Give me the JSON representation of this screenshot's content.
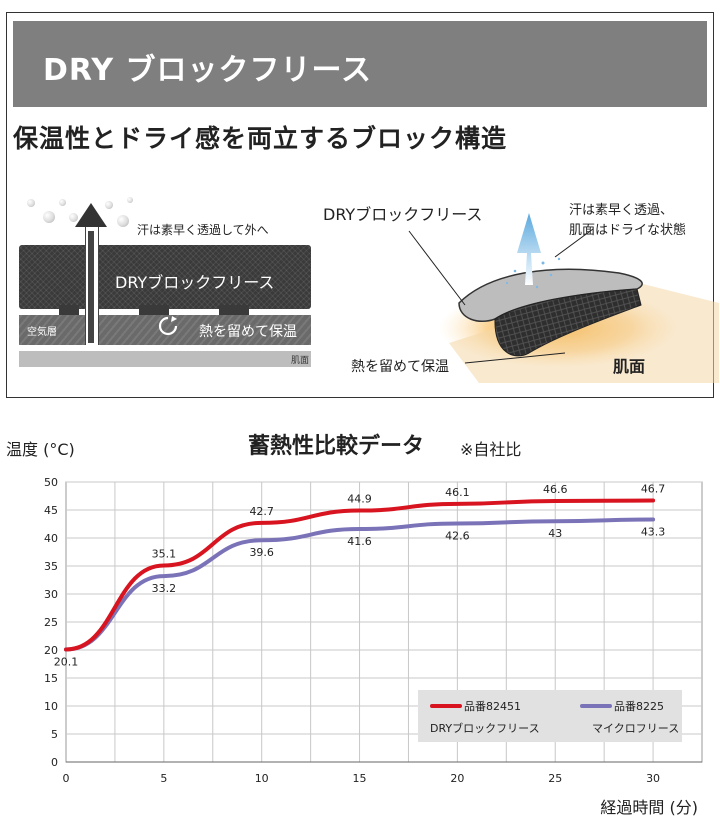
{
  "header": {
    "banner_title": "DRY ブロックフリース",
    "subtitle": "保温性とドライ感を両立するブロック構造"
  },
  "schematic": {
    "sweat_text": "汗は素早く透過して外へ",
    "fleece_text": "DRYブロックフリース",
    "air_layer_text": "空気層",
    "heat_text": "熱を留めて保温",
    "skin_text": "肌面"
  },
  "illustration": {
    "fleece_text": "DRYブロックフリース",
    "sweat_line1": "汗は素早く透過、",
    "sweat_line2": "肌面はドライな状態",
    "heat_text": "熱を留めて保温",
    "skin_text": "肌面"
  },
  "chart_data": {
    "type": "line",
    "title": "蓄熱性比較データ",
    "note": "※自社比",
    "ylabel": "温度 (°C)",
    "xlabel": "経過時間 (分)",
    "x": [
      0,
      5,
      10,
      15,
      20,
      25,
      30
    ],
    "ylim": [
      0,
      50
    ],
    "y_ticks": [
      0,
      5,
      10,
      15,
      20,
      25,
      30,
      35,
      40,
      45,
      50
    ],
    "grid": true,
    "legend_position": "bottom-right",
    "series": [
      {
        "name": "品番82451 DRYブロックフリース",
        "code": "品番82451",
        "desc": "DRYブロックフリース",
        "color": "#d7141f",
        "values": [
          20.1,
          35.1,
          42.7,
          44.9,
          46.1,
          46.6,
          46.7
        ],
        "labels": [
          "",
          "35.1",
          "42.7",
          "44.9",
          "46.1",
          "46.6",
          "46.7"
        ]
      },
      {
        "name": "品番8225 マイクロフリース",
        "code": "品番8225",
        "desc": "マイクロフリース",
        "color": "#7b73b8",
        "values": [
          20.1,
          33.2,
          39.6,
          41.6,
          42.6,
          43,
          43.3
        ],
        "labels": [
          "20.1",
          "33.2",
          "39.6",
          "41.6",
          "42.6",
          "43",
          "43.3"
        ]
      }
    ]
  }
}
